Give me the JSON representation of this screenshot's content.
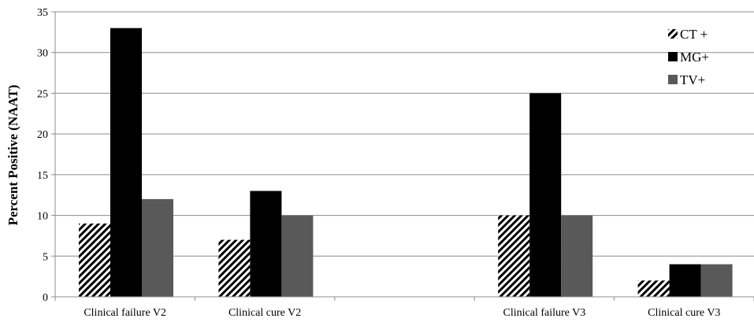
{
  "chart_data": {
    "type": "bar",
    "title": "",
    "xlabel": "",
    "ylabel": "Percent Positive (NAAT)",
    "ylim": [
      0,
      35
    ],
    "yticks": [
      0,
      5,
      10,
      15,
      20,
      25,
      30,
      35
    ],
    "grid": true,
    "legend_position": "top-right",
    "categories": [
      "Clinical failure V2",
      "Clinical cure V2",
      "",
      "Clinical failure V3",
      "Clinical cure V3"
    ],
    "series": [
      {
        "name": "CT +",
        "values": [
          9,
          7,
          null,
          10,
          2
        ],
        "color": "#ffffff",
        "pattern": "diagonal-hatch"
      },
      {
        "name": "MG+",
        "values": [
          33,
          13,
          null,
          25,
          4
        ],
        "color": "#000000",
        "pattern": "solid"
      },
      {
        "name": "TV+",
        "values": [
          12,
          10,
          null,
          10,
          4
        ],
        "color": "#595959",
        "pattern": "solid"
      }
    ]
  }
}
